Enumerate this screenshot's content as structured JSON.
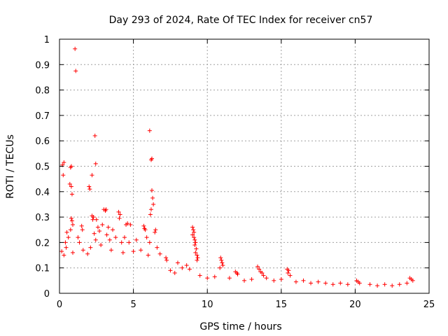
{
  "chart_data": {
    "type": "scatter",
    "title": "Day 293 of 2024, Rate Of TEC Index for receiver cn57",
    "xlabel": "GPS time / hours",
    "ylabel": "ROTI / TECUs",
    "xlim": [
      0,
      25
    ],
    "ylim": [
      0,
      1
    ],
    "xticks": [
      0,
      5,
      10,
      15,
      20,
      25
    ],
    "yticks": [
      0,
      0.1,
      0.2,
      0.3,
      0.4,
      0.5,
      0.6,
      0.7,
      0.8,
      0.9,
      1
    ],
    "xtick_labels": [
      "0",
      "5",
      "10",
      "15",
      "20",
      "25"
    ],
    "ytick_labels": [
      "0",
      "0.1",
      "0.2",
      "0.3",
      "0.4",
      "0.5",
      "0.6",
      "0.7",
      "0.8",
      "0.9",
      "1"
    ],
    "grid": true,
    "marker": "plus",
    "color": "#ff0000",
    "series": [
      {
        "points": [
          [
            1.05,
            0.962
          ],
          [
            1.1,
            0.875
          ],
          [
            6.1,
            0.64
          ],
          [
            2.4,
            0.62
          ],
          [
            6.25,
            0.53
          ],
          [
            6.2,
            0.525
          ],
          [
            0.3,
            0.515
          ],
          [
            0.2,
            0.505
          ],
          [
            0.8,
            0.5
          ],
          [
            0.75,
            0.495
          ],
          [
            2.45,
            0.51
          ],
          [
            0.25,
            0.465
          ],
          [
            2.2,
            0.465
          ],
          [
            0.7,
            0.43
          ],
          [
            0.8,
            0.42
          ],
          [
            0.85,
            0.39
          ],
          [
            2.0,
            0.42
          ],
          [
            2.05,
            0.41
          ],
          [
            6.25,
            0.405
          ],
          [
            6.3,
            0.375
          ],
          [
            6.35,
            0.35
          ],
          [
            6.2,
            0.33
          ],
          [
            6.15,
            0.31
          ],
          [
            3.0,
            0.33
          ],
          [
            3.1,
            0.325
          ],
          [
            3.15,
            0.33
          ],
          [
            4.0,
            0.32
          ],
          [
            4.1,
            0.31
          ],
          [
            4.05,
            0.295
          ],
          [
            2.2,
            0.305
          ],
          [
            2.3,
            0.3
          ],
          [
            2.25,
            0.29
          ],
          [
            2.5,
            0.29
          ],
          [
            0.8,
            0.295
          ],
          [
            0.85,
            0.285
          ],
          [
            0.9,
            0.27
          ],
          [
            0.75,
            0.25
          ],
          [
            5.7,
            0.265
          ],
          [
            5.75,
            0.255
          ],
          [
            5.8,
            0.25
          ],
          [
            6.5,
            0.25
          ],
          [
            6.45,
            0.24
          ],
          [
            4.5,
            0.27
          ],
          [
            4.6,
            0.275
          ],
          [
            4.8,
            0.27
          ],
          [
            1.5,
            0.265
          ],
          [
            1.55,
            0.25
          ],
          [
            2.6,
            0.26
          ],
          [
            2.7,
            0.245
          ],
          [
            2.9,
            0.27
          ],
          [
            3.3,
            0.26
          ],
          [
            3.6,
            0.25
          ],
          [
            0.5,
            0.24
          ],
          [
            0.6,
            0.22
          ],
          [
            0.4,
            0.2
          ],
          [
            0.45,
            0.18
          ],
          [
            1.25,
            0.22
          ],
          [
            1.35,
            0.2
          ],
          [
            2.35,
            0.235
          ],
          [
            2.45,
            0.21
          ],
          [
            3.2,
            0.23
          ],
          [
            3.4,
            0.21
          ],
          [
            3.8,
            0.22
          ],
          [
            4.2,
            0.2
          ],
          [
            4.4,
            0.22
          ],
          [
            4.7,
            0.2
          ],
          [
            5.2,
            0.21
          ],
          [
            5.9,
            0.22
          ],
          [
            6.1,
            0.2
          ],
          [
            6.6,
            0.18
          ],
          [
            0.15,
            0.165
          ],
          [
            0.3,
            0.15
          ],
          [
            0.9,
            0.16
          ],
          [
            1.6,
            0.17
          ],
          [
            1.9,
            0.155
          ],
          [
            2.1,
            0.18
          ],
          [
            2.8,
            0.19
          ],
          [
            3.5,
            0.17
          ],
          [
            4.3,
            0.16
          ],
          [
            5.0,
            0.165
          ],
          [
            5.5,
            0.17
          ],
          [
            6.0,
            0.15
          ],
          [
            6.8,
            0.155
          ],
          [
            7.2,
            0.14
          ],
          [
            7.25,
            0.13
          ],
          [
            9.0,
            0.26
          ],
          [
            9.05,
            0.25
          ],
          [
            9.1,
            0.24
          ],
          [
            9.0,
            0.23
          ],
          [
            9.1,
            0.22
          ],
          [
            9.15,
            0.21
          ],
          [
            9.2,
            0.2
          ],
          [
            9.15,
            0.19
          ],
          [
            9.25,
            0.175
          ],
          [
            9.2,
            0.16
          ],
          [
            9.3,
            0.15
          ],
          [
            9.35,
            0.14
          ],
          [
            9.3,
            0.13
          ],
          [
            10.9,
            0.14
          ],
          [
            10.95,
            0.13
          ],
          [
            11.0,
            0.12
          ],
          [
            11.05,
            0.11
          ],
          [
            10.85,
            0.1
          ],
          [
            11.9,
            0.085
          ],
          [
            12.0,
            0.08
          ],
          [
            12.05,
            0.075
          ],
          [
            13.4,
            0.105
          ],
          [
            13.5,
            0.095
          ],
          [
            13.6,
            0.085
          ],
          [
            13.7,
            0.08
          ],
          [
            13.8,
            0.07
          ],
          [
            15.4,
            0.095
          ],
          [
            15.5,
            0.09
          ],
          [
            15.45,
            0.08
          ],
          [
            15.6,
            0.07
          ],
          [
            20.1,
            0.05
          ],
          [
            20.2,
            0.045
          ],
          [
            20.3,
            0.04
          ],
          [
            23.7,
            0.06
          ],
          [
            23.8,
            0.055
          ],
          [
            23.9,
            0.05
          ],
          [
            8.0,
            0.12
          ],
          [
            8.3,
            0.1
          ],
          [
            8.6,
            0.11
          ],
          [
            7.5,
            0.09
          ],
          [
            7.8,
            0.08
          ],
          [
            8.8,
            0.095
          ],
          [
            9.5,
            0.07
          ],
          [
            10.0,
            0.06
          ],
          [
            10.5,
            0.065
          ],
          [
            11.5,
            0.06
          ],
          [
            12.5,
            0.05
          ],
          [
            13.0,
            0.055
          ],
          [
            14.0,
            0.06
          ],
          [
            14.5,
            0.05
          ],
          [
            15.0,
            0.055
          ],
          [
            16.0,
            0.045
          ],
          [
            16.5,
            0.05
          ],
          [
            17.0,
            0.04
          ],
          [
            17.5,
            0.045
          ],
          [
            18.0,
            0.04
          ],
          [
            18.5,
            0.035
          ],
          [
            19.0,
            0.04
          ],
          [
            19.5,
            0.035
          ],
          [
            21.0,
            0.035
          ],
          [
            21.5,
            0.03
          ],
          [
            22.0,
            0.035
          ],
          [
            22.5,
            0.03
          ],
          [
            23.0,
            0.035
          ],
          [
            23.5,
            0.04
          ]
        ]
      }
    ]
  }
}
